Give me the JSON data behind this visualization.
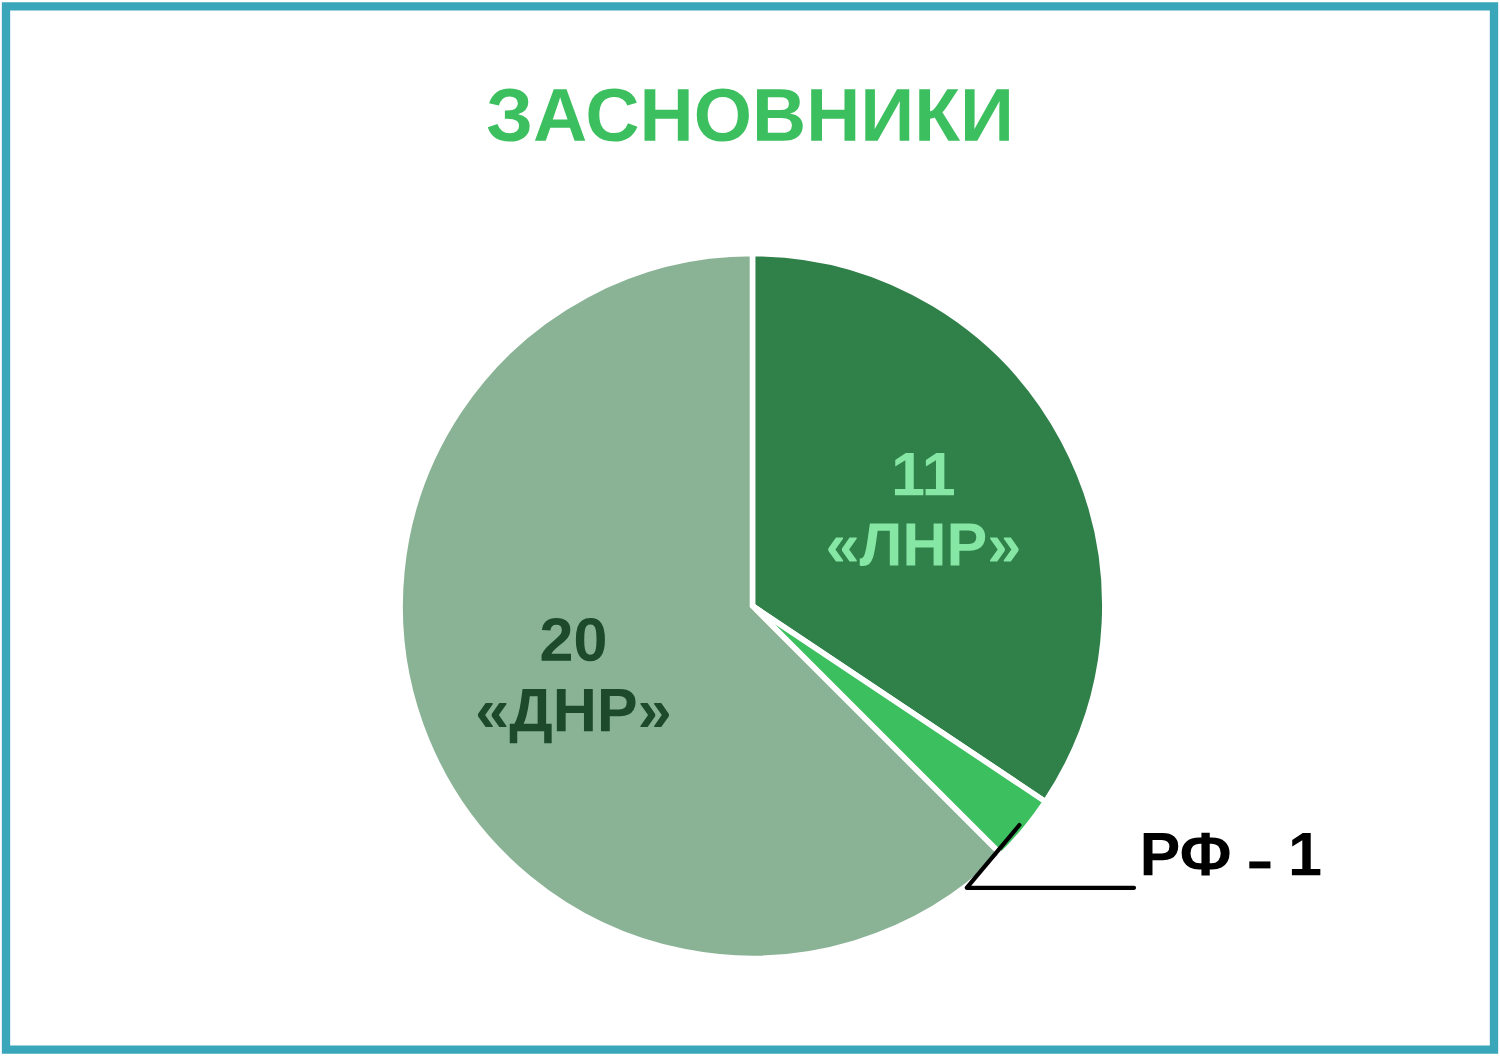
{
  "chart_data": {
    "type": "pie",
    "title": "ЗАСНОВНИКИ",
    "categories": [
      "«ЛНР»",
      "РФ",
      "«ДНР»"
    ],
    "values": [
      11,
      1,
      20
    ],
    "colors": [
      "#30804a",
      "#3cbf5f",
      "#8ab396"
    ],
    "data_labels": true,
    "legend": false
  }
}
